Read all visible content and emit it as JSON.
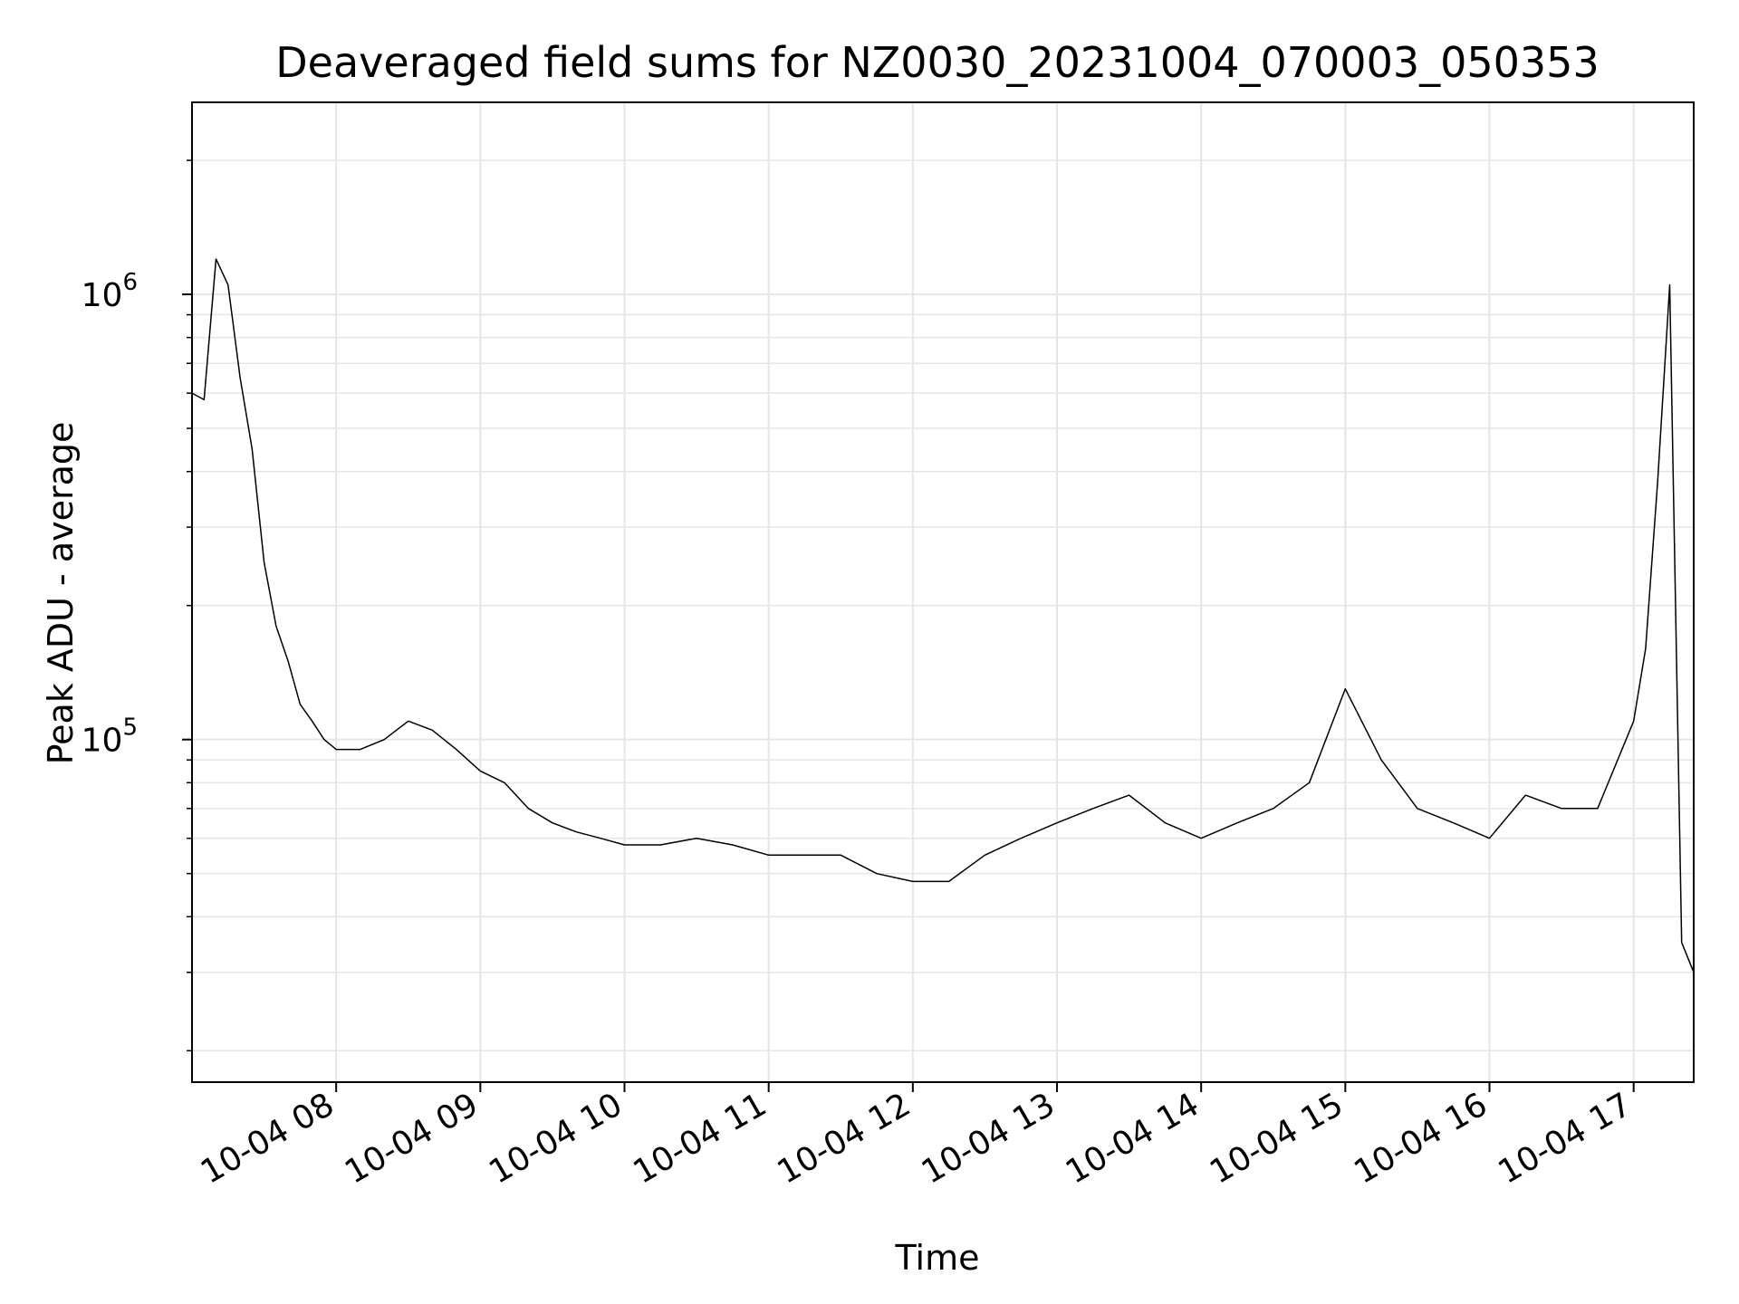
{
  "chart_data": {
    "type": "line",
    "title": "Deaveraged field sums for NZ0030_20231004_070003_050353",
    "xlabel": "Time",
    "ylabel": "Peak ADU - average",
    "y_scale": "log",
    "ylim": [
      17000,
      2700000
    ],
    "xlim": [
      "2023-10-04 07:00",
      "2023-10-04 17:25"
    ],
    "grid": true,
    "legend": "none",
    "colors": {
      "line": "#000000",
      "grid": "#e6e6e6",
      "axes": "#000000",
      "background": "#ffffff"
    },
    "x_ticks": [
      "10-04 08",
      "10-04 09",
      "10-04 10",
      "10-04 11",
      "10-04 12",
      "10-04 13",
      "10-04 14",
      "10-04 15",
      "10-04 16",
      "10-04 17"
    ],
    "y_ticks": [
      {
        "base": "10",
        "exp": "5",
        "value": 100000
      },
      {
        "base": "10",
        "exp": "6",
        "value": 1000000
      }
    ],
    "series": [
      {
        "x": [
          "2023-10-04 07:00",
          "2023-10-04 07:05",
          "2023-10-04 07:10",
          "2023-10-04 07:15",
          "2023-10-04 07:20",
          "2023-10-04 07:25",
          "2023-10-04 07:30",
          "2023-10-04 07:35",
          "2023-10-04 07:40",
          "2023-10-04 07:45",
          "2023-10-04 07:50",
          "2023-10-04 07:55",
          "2023-10-04 08:00",
          "2023-10-04 08:10",
          "2023-10-04 08:20",
          "2023-10-04 08:30",
          "2023-10-04 08:40",
          "2023-10-04 08:50",
          "2023-10-04 09:00",
          "2023-10-04 09:10",
          "2023-10-04 09:20",
          "2023-10-04 09:30",
          "2023-10-04 09:40",
          "2023-10-04 09:50",
          "2023-10-04 10:00",
          "2023-10-04 10:15",
          "2023-10-04 10:30",
          "2023-10-04 10:45",
          "2023-10-04 11:00",
          "2023-10-04 11:15",
          "2023-10-04 11:30",
          "2023-10-04 11:45",
          "2023-10-04 12:00",
          "2023-10-04 12:15",
          "2023-10-04 12:30",
          "2023-10-04 12:45",
          "2023-10-04 13:00",
          "2023-10-04 13:15",
          "2023-10-04 13:30",
          "2023-10-04 13:45",
          "2023-10-04 14:00",
          "2023-10-04 14:15",
          "2023-10-04 14:30",
          "2023-10-04 14:45",
          "2023-10-04 15:00",
          "2023-10-04 15:15",
          "2023-10-04 15:30",
          "2023-10-04 15:45",
          "2023-10-04 16:00",
          "2023-10-04 16:15",
          "2023-10-04 16:30",
          "2023-10-04 16:45",
          "2023-10-04 17:00",
          "2023-10-04 17:05",
          "2023-10-04 17:10",
          "2023-10-04 17:15",
          "2023-10-04 17:20",
          "2023-10-04 17:25"
        ],
        "y": [
          600000,
          580000,
          1200000,
          1050000,
          650000,
          450000,
          250000,
          180000,
          150000,
          120000,
          110000,
          100000,
          95000,
          95000,
          100000,
          110000,
          105000,
          95000,
          85000,
          80000,
          70000,
          65000,
          62000,
          60000,
          58000,
          58000,
          60000,
          58000,
          55000,
          55000,
          55000,
          50000,
          48000,
          48000,
          55000,
          60000,
          65000,
          70000,
          75000,
          65000,
          60000,
          65000,
          70000,
          80000,
          130000,
          90000,
          70000,
          65000,
          60000,
          75000,
          70000,
          70000,
          110000,
          160000,
          380000,
          1050000,
          35000,
          30000
        ]
      }
    ]
  }
}
